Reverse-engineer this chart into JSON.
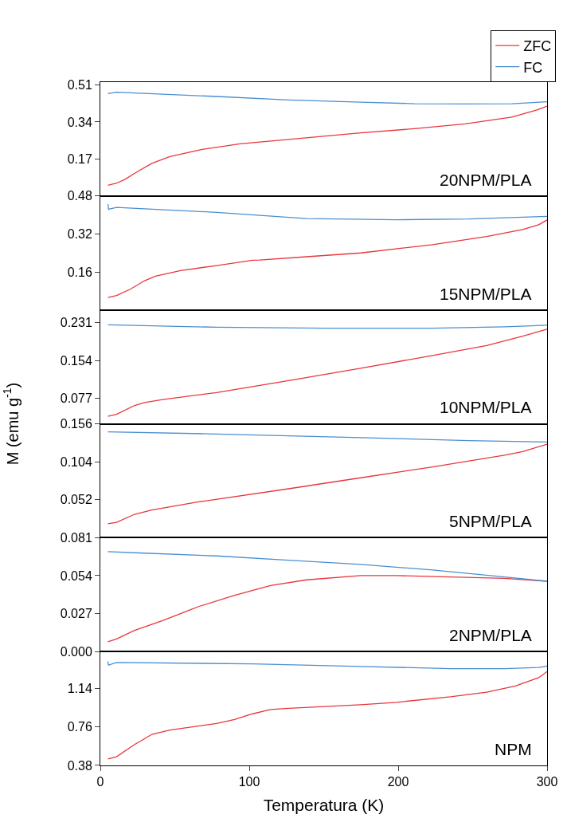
{
  "chart_data": [
    {
      "type": "line",
      "xlim": [
        0,
        300
      ],
      "xticks": [
        0,
        100,
        200,
        300
      ],
      "ylim": [
        0,
        0.523
      ],
      "yticks": [
        0.17,
        0.34,
        0.51
      ],
      "tick_labels": "y",
      "grid": false,
      "legend": "top right",
      "marker": "none",
      "line_style": "solid",
      "annotations": [
        "20NPM/PLA"
      ],
      "series": [
        {
          "name": "ZFC",
          "color": "#e8363c",
          "x": [
            5.1,
            10.9,
            16.4,
            24.9,
            34.6,
            46.7,
            68.4,
            93.8,
            126.4,
            174.8,
            211.0,
            244.9,
            276.3,
            293.2,
            300
          ],
          "values": [
            0.049,
            0.059,
            0.076,
            0.112,
            0.15,
            0.181,
            0.214,
            0.24,
            0.26,
            0.29,
            0.309,
            0.331,
            0.362,
            0.395,
            0.413
          ]
        },
        {
          "name": "FC",
          "color": "#4a8fd0",
          "x": [
            5.1,
            10.9,
            78.1,
            126.4,
            174.8,
            211.0,
            244.9,
            276.3,
            300
          ],
          "values": [
            0.47,
            0.477,
            0.457,
            0.441,
            0.431,
            0.424,
            0.423,
            0.424,
            0.433
          ]
        }
      ]
    },
    {
      "type": "line",
      "xlim": [
        0,
        300
      ],
      "xticks": [
        0,
        100,
        200,
        300
      ],
      "ylim": [
        0,
        0.48
      ],
      "yticks": [
        0.16,
        0.32,
        0.48
      ],
      "tick_labels": "y",
      "grid": false,
      "marker": "none",
      "line_style": "solid",
      "annotations": [
        "15NPM/PLA"
      ],
      "series": [
        {
          "color": "#e8363c",
          "x": [
            5.1,
            10.9,
            20.1,
            29.7,
            37.0,
            53.9,
            78.1,
            102.3,
            107.1,
            138.5,
            174.8,
            223.1,
            259.4,
            283.6,
            294.4,
            300
          ],
          "values": [
            0.052,
            0.061,
            0.087,
            0.123,
            0.142,
            0.166,
            0.187,
            0.209,
            0.21,
            0.224,
            0.24,
            0.275,
            0.309,
            0.339,
            0.359,
            0.379
          ]
        },
        {
          "color": "#4a8fd0",
          "x": [
            5.1,
            5.5,
            10.9,
            78.1,
            138.5,
            199.0,
            247.3,
            300
          ],
          "values": [
            0.446,
            0.424,
            0.432,
            0.411,
            0.385,
            0.38,
            0.383,
            0.394
          ]
        }
      ]
    },
    {
      "type": "line",
      "xlim": [
        0,
        300
      ],
      "xticks": [
        0,
        100,
        200,
        300
      ],
      "ylim": [
        0.026,
        0.256
      ],
      "yticks": [
        0.077,
        0.154,
        0.231
      ],
      "tick_labels": "y",
      "grid": false,
      "marker": "none",
      "line_style": "solid",
      "annotations": [
        "10NPM/PLA"
      ],
      "ylabel": "M (emu g$^{-1}$)",
      "series": [
        {
          "color": "#e8363c",
          "x": [
            5.1,
            10.9,
            23.0,
            29.7,
            41.8,
            78.1,
            126.4,
            174.8,
            223.1,
            259.4,
            283.6,
            300
          ],
          "values": [
            0.041,
            0.045,
            0.063,
            0.069,
            0.075,
            0.089,
            0.113,
            0.138,
            0.164,
            0.184,
            0.203,
            0.217
          ]
        },
        {
          "color": "#4a8fd0",
          "x": [
            5.1,
            78.1,
            150.6,
            223.1,
            271.5,
            300
          ],
          "values": [
            0.226,
            0.221,
            0.219,
            0.219,
            0.222,
            0.225
          ]
        }
      ]
    },
    {
      "type": "line",
      "xlim": [
        0,
        300
      ],
      "xticks": [
        0,
        100,
        200,
        300
      ],
      "ylim": [
        0,
        0.156
      ],
      "yticks": [
        0.052,
        0.104,
        0.156
      ],
      "tick_labels": "y",
      "grid": false,
      "marker": "none",
      "line_style": "solid",
      "annotations": [
        "5NPM/PLA"
      ],
      "series": [
        {
          "color": "#e8363c",
          "x": [
            5.1,
            10.9,
            23.0,
            34.6,
            66.0,
            126.4,
            174.8,
            223.1,
            271.5,
            283.6,
            300
          ],
          "values": [
            0.019,
            0.021,
            0.032,
            0.038,
            0.049,
            0.067,
            0.082,
            0.097,
            0.113,
            0.118,
            0.128
          ]
        },
        {
          "color": "#4a8fd0",
          "x": [
            5.1,
            78.1,
            174.8,
            247.3,
            300
          ],
          "values": [
            0.145,
            0.142,
            0.137,
            0.133,
            0.131
          ]
        }
      ]
    },
    {
      "type": "line",
      "xlim": [
        0,
        300
      ],
      "xticks": [
        0,
        100,
        200,
        300
      ],
      "ylim": [
        0,
        0.081
      ],
      "yticks": [
        {
          "value": 0,
          "label": "0.000"
        },
        0.027,
        0.054,
        0.081
      ],
      "tick_labels": "y",
      "grid": false,
      "marker": "none",
      "line_style": "solid",
      "annotations": [
        "2NPM/PLA"
      ],
      "series": [
        {
          "color": "#e8363c",
          "x": [
            5.1,
            10.9,
            23.0,
            41.8,
            66.0,
            90.2,
            114.3,
            138.5,
            174.8,
            199.0,
            235.2,
            271.5,
            300
          ],
          "values": [
            0.007,
            0.009,
            0.015,
            0.022,
            0.032,
            0.04,
            0.047,
            0.051,
            0.054,
            0.054,
            0.053,
            0.052,
            0.05
          ]
        },
        {
          "color": "#4a8fd0",
          "x": [
            5.1,
            29.7,
            78.1,
            126.4,
            174.8,
            223.1,
            271.5,
            300
          ],
          "values": [
            0.071,
            0.07,
            0.068,
            0.065,
            0.062,
            0.058,
            0.053,
            0.05
          ]
        }
      ]
    },
    {
      "type": "line",
      "xlim": [
        0,
        300
      ],
      "xticks": [
        0,
        100,
        200,
        300
      ],
      "ylim": [
        0.38,
        1.505
      ],
      "yticks": [
        0.38,
        0.76,
        1.14
      ],
      "grid": false,
      "marker": "none",
      "line_style": "solid",
      "annotations": [
        "NPM"
      ],
      "xlabel": "Temperatura (K)",
      "series": [
        {
          "color": "#e8363c",
          "x": [
            5.1,
            10.9,
            23.0,
            29.7,
            34.6,
            46.7,
            78.1,
            90.2,
            102.3,
            114.3,
            126.4,
            174.8,
            199.0,
            235.2,
            259.4,
            278.7,
            294.4,
            300
          ],
          "values": [
            0.444,
            0.466,
            0.587,
            0.644,
            0.687,
            0.73,
            0.794,
            0.833,
            0.89,
            0.933,
            0.944,
            0.979,
            1.004,
            1.058,
            1.104,
            1.165,
            1.247,
            1.308
          ]
        },
        {
          "color": "#4a8fd0",
          "x": [
            5.1,
            5.5,
            10.9,
            102.3,
            174.8,
            235.2,
            271.5,
            294.4,
            300
          ],
          "values": [
            1.408,
            1.372,
            1.397,
            1.383,
            1.358,
            1.336,
            1.336,
            1.347,
            1.361
          ]
        }
      ]
    }
  ]
}
